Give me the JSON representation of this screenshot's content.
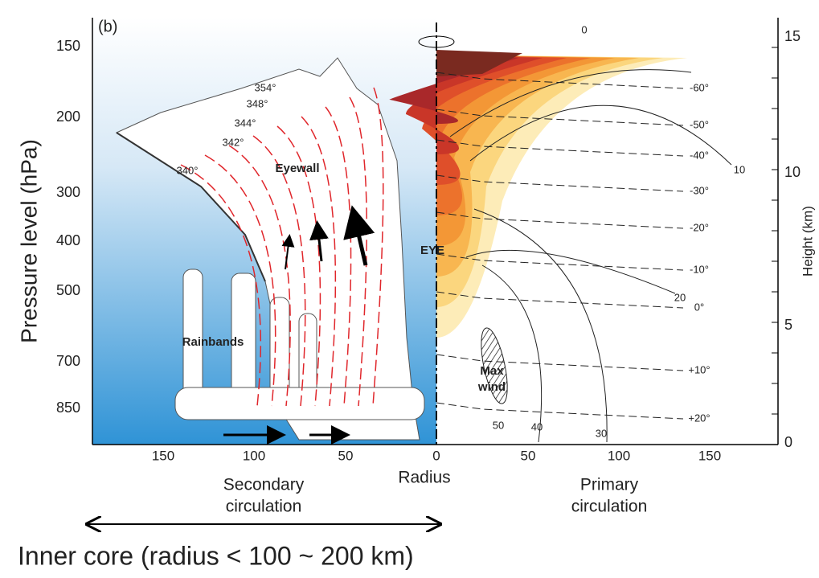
{
  "panel_label": "(b)",
  "left_axis": {
    "title": "Pressure level (hPa)",
    "ticks": [
      "150",
      "200",
      "300",
      "400",
      "500",
      "700",
      "850"
    ]
  },
  "right_axis": {
    "title": "Height (km)",
    "ticks": [
      "15",
      "10",
      "5",
      "0"
    ]
  },
  "bottom_axis": {
    "title": "Radius",
    "ticks_left": [
      "150",
      "100",
      "50",
      "0"
    ],
    "ticks_right": [
      "50",
      "100",
      "150"
    ]
  },
  "labels": {
    "secondary": [
      "Secondary",
      "circulation"
    ],
    "primary": [
      "Primary",
      "circulation"
    ],
    "eyewall": "Eyewall",
    "eye": "EYE",
    "rainbands": "Rainbands",
    "max_wind": [
      "Max",
      "wind"
    ]
  },
  "theta_labels": [
    "340°",
    "342°",
    "344°",
    "348°",
    "354°"
  ],
  "temperature_labels": [
    "-60°",
    "-50°",
    "-40°",
    "-30°",
    "-20°",
    "-10°",
    "0°",
    "+10°",
    "+20°"
  ],
  "wind_labels": [
    "0",
    "10",
    "20",
    "30",
    "40",
    "50"
  ],
  "footer": "Inner core (radius < 100 ~ 200 km)"
}
